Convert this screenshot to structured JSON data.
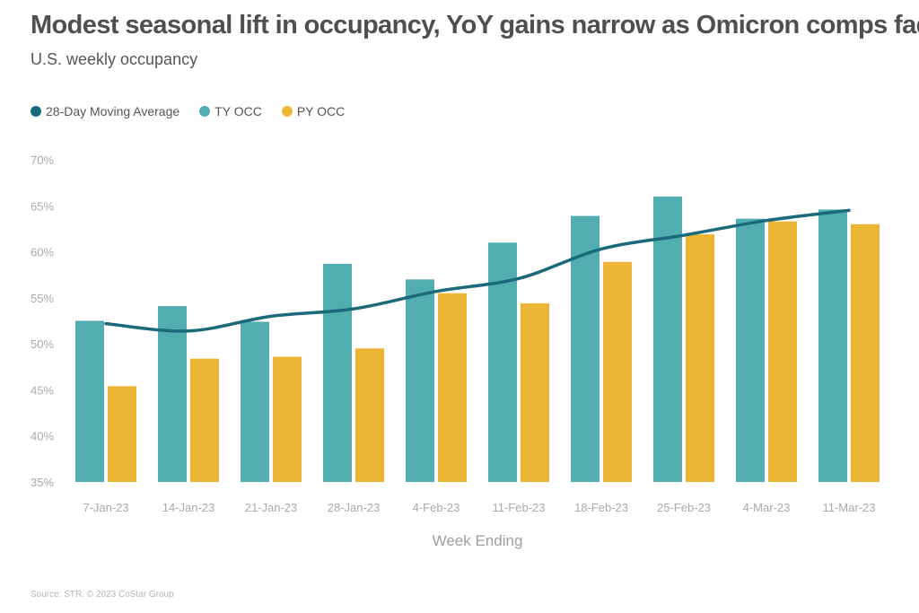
{
  "title": "Modest seasonal lift in occupancy, YoY gains narrow as Omicron comps fade",
  "subtitle": "U.S. weekly occupancy",
  "source": "Source: STR. © 2023 CoStar Group",
  "colors": {
    "moving_average": "#1b6a7a",
    "ty_occ": "#52adb1",
    "py_occ": "#ecb535",
    "tick_text": "#a9a9a9",
    "axis_title": "#9e9e9e"
  },
  "chart_data": {
    "type": "bar",
    "categories": [
      "7-Jan-23",
      "14-Jan-23",
      "21-Jan-23",
      "28-Jan-23",
      "4-Feb-23",
      "11-Feb-23",
      "18-Feb-23",
      "25-Feb-23",
      "4-Mar-23",
      "11-Mar-23"
    ],
    "series": [
      {
        "name": "TY OCC",
        "type": "bar",
        "values": [
          52.5,
          54.1,
          52.4,
          58.7,
          57.0,
          61.0,
          63.9,
          66.0,
          63.6,
          64.6
        ]
      },
      {
        "name": "PY OCC",
        "type": "bar",
        "values": [
          45.4,
          48.4,
          48.6,
          49.5,
          55.5,
          54.4,
          58.9,
          61.9,
          63.3,
          63.0
        ]
      },
      {
        "name": "28-Day Moving Average",
        "type": "line",
        "values": [
          52.2,
          51.4,
          53.0,
          53.8,
          55.7,
          57.1,
          60.3,
          61.8,
          63.4,
          64.5
        ]
      }
    ],
    "legend": [
      "28-Day Moving Average",
      "TY OCC",
      "PY OCC"
    ],
    "xlabel": "Week Ending",
    "ylabel": "",
    "ylim": [
      35,
      70
    ],
    "yticks": [
      35,
      40,
      45,
      50,
      55,
      60,
      65,
      70
    ],
    "ytick_labels": [
      "35%",
      "40%",
      "45%",
      "50%",
      "55%",
      "60%",
      "65%",
      "70%"
    ],
    "grid": false,
    "legend_position": "top-left"
  }
}
